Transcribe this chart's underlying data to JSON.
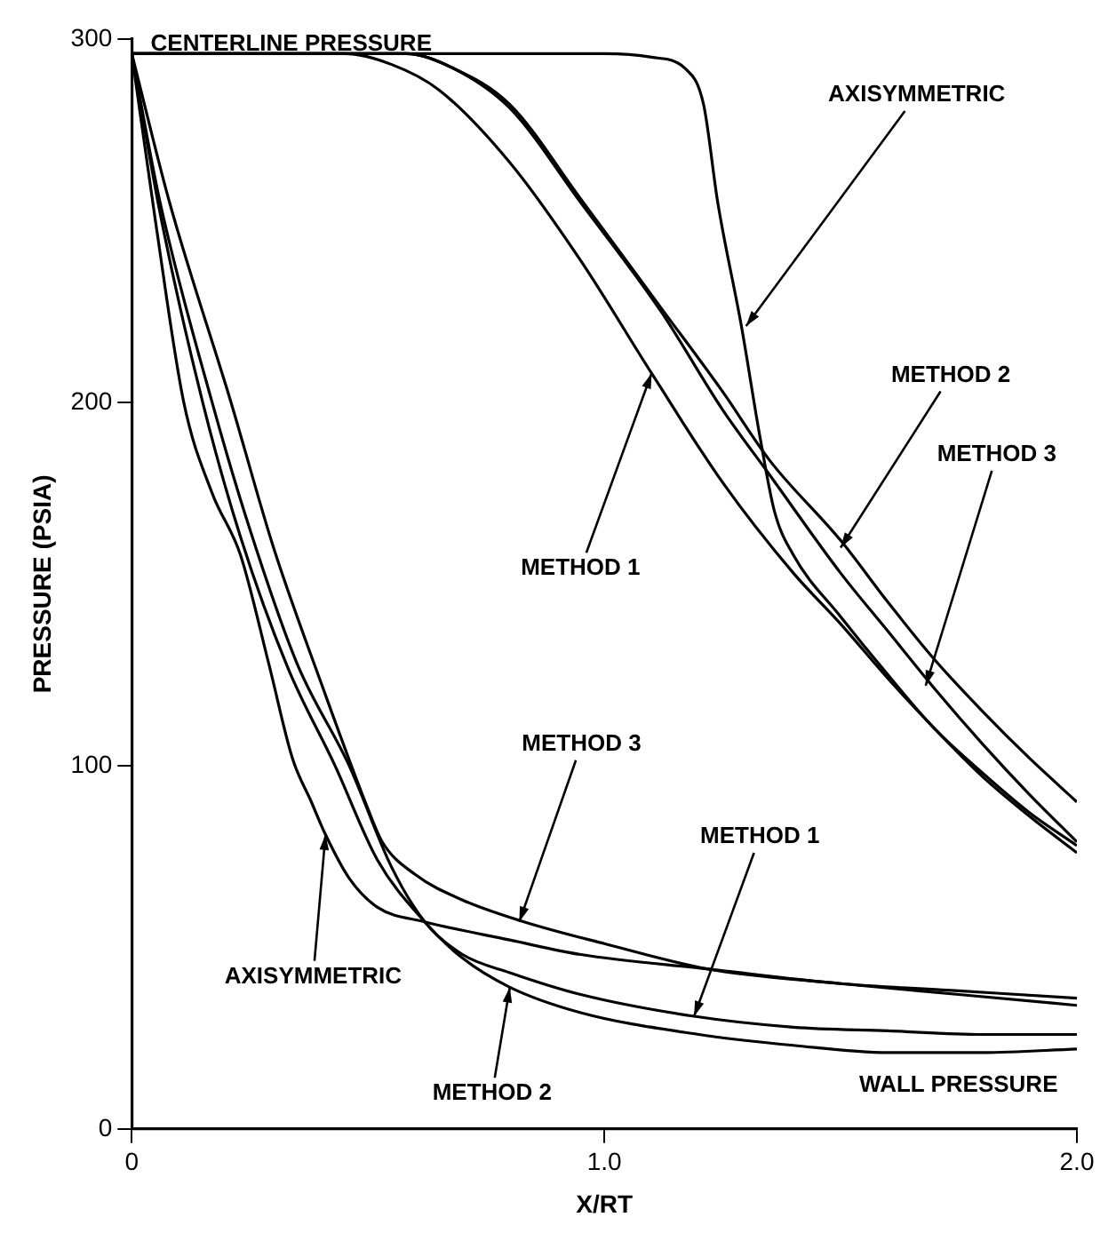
{
  "chart_data": {
    "type": "line",
    "xlabel": "X/RT",
    "ylabel": "PRESSURE (PSIA)",
    "xlim": [
      0,
      2
    ],
    "ylim": [
      0,
      300
    ],
    "xticks": [
      0,
      {
        "value": 1,
        "label": "1.0"
      },
      {
        "value": 2,
        "label": "2.0"
      }
    ],
    "yticks": [
      0,
      100,
      200,
      300
    ],
    "grid": false,
    "legend": false,
    "marker": "none",
    "line_style": "solid",
    "series": [
      {
        "color": "#000000",
        "x": [
          0,
          1.0,
          1.1,
          1.17,
          1.21,
          1.24,
          1.29,
          1.33,
          1.36,
          1.4,
          1.5,
          1.6,
          1.7,
          1.8,
          1.9,
          2.0
        ],
        "values": [
          296,
          296,
          295,
          292,
          282,
          255,
          221,
          190,
          170,
          158,
          141,
          125,
          110,
          98,
          87,
          78
        ]
      },
      {
        "color": "#000000",
        "x": [
          0,
          0.45,
          0.55,
          0.65,
          0.8,
          0.95,
          1.1,
          1.25,
          1.4,
          1.5,
          1.6,
          1.7,
          1.8,
          1.9,
          2.0
        ],
        "values": [
          296,
          296,
          293,
          286,
          266,
          239,
          208,
          178,
          153,
          139,
          124,
          110,
          97,
          86,
          76
        ]
      },
      {
        "color": "#000000",
        "x": [
          0,
          0.58,
          0.68,
          0.8,
          0.95,
          1.12,
          1.25,
          1.35,
          1.5,
          1.6,
          1.7,
          1.8,
          1.9,
          2.0
        ],
        "values": [
          296,
          296,
          292,
          282,
          256,
          226,
          203,
          184,
          162,
          145,
          129,
          115,
          102,
          90
        ]
      },
      {
        "color": "#000000",
        "x": [
          0,
          0.58,
          0.68,
          0.8,
          0.95,
          1.12,
          1.25,
          1.35,
          1.5,
          1.6,
          1.7,
          1.8,
          1.9,
          2.0
        ],
        "values": [
          296,
          296,
          292,
          281,
          255,
          225,
          198,
          180,
          153,
          137,
          121,
          106,
          92,
          79
        ]
      },
      {
        "color": "#000000",
        "x": [
          0,
          0.05,
          0.11,
          0.17,
          0.23,
          0.29,
          0.34,
          0.38,
          0.41,
          0.46,
          0.52,
          0.62,
          0.8,
          0.95,
          1.22,
          1.5,
          1.75,
          2.0
        ],
        "values": [
          296,
          250,
          200,
          175,
          158,
          128,
          102,
          90,
          81,
          69,
          61,
          57,
          52,
          48,
          44,
          40,
          38,
          36
        ]
      },
      {
        "color": "#000000",
        "x": [
          0,
          0.06,
          0.17,
          0.25,
          0.35,
          0.46,
          0.55,
          0.62,
          0.7,
          0.8,
          0.95,
          1.19,
          1.4,
          1.6,
          1.8,
          2.0
        ],
        "values": [
          296,
          255,
          200,
          165,
          128,
          100,
          72,
          57,
          48,
          43,
          37,
          31,
          28,
          27,
          26,
          26
        ]
      },
      {
        "color": "#000000",
        "x": [
          0,
          0.06,
          0.15,
          0.23,
          0.33,
          0.43,
          0.52,
          0.62,
          0.7,
          0.8,
          0.95,
          1.2,
          1.4,
          1.6,
          1.8,
          2.0
        ],
        "values": [
          296,
          252,
          200,
          163,
          127,
          100,
          74,
          57,
          47,
          39,
          32,
          26,
          23,
          21,
          21,
          22
        ]
      },
      {
        "color": "#000000",
        "x": [
          0,
          0.08,
          0.21,
          0.3,
          0.4,
          0.5,
          0.53,
          0.6,
          0.7,
          0.83,
          1.0,
          1.22,
          1.5,
          1.75,
          2.0
        ],
        "values": [
          296,
          255,
          200,
          160,
          123,
          88,
          79,
          70,
          63,
          57,
          51,
          44,
          40,
          37,
          34
        ]
      }
    ],
    "annotations": [
      "CENTERLINE PRESSURE",
      "WALL PRESSURE",
      {
        "text": "AXISYMMETRIC",
        "x": 1.3,
        "y": 221
      },
      {
        "text": "METHOD 2",
        "x": 1.5,
        "y": 160
      },
      {
        "text": "METHOD 3",
        "x": 1.68,
        "y": 122
      },
      {
        "text": "METHOD 1",
        "x": 1.1,
        "y": 208
      },
      {
        "text": "METHOD 3",
        "x": 0.82,
        "y": 57
      },
      {
        "text": "METHOD 1",
        "x": 1.19,
        "y": 31
      },
      {
        "text": "AXISYMMETRIC",
        "x": 0.41,
        "y": 81
      },
      {
        "text": "METHOD 2",
        "x": 0.8,
        "y": 39
      }
    ]
  }
}
